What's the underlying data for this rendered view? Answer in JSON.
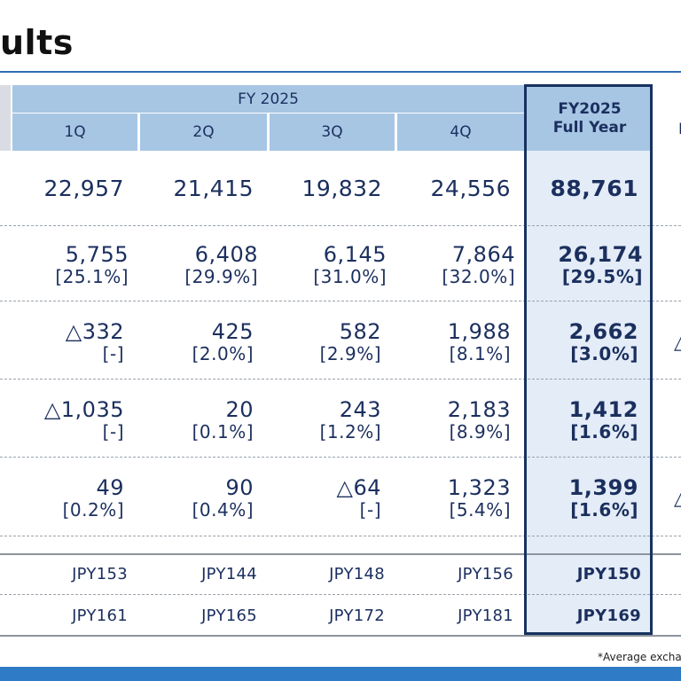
{
  "title": "ults",
  "header": {
    "period": "FY 2025",
    "quarters": [
      "1Q",
      "2Q",
      "3Q",
      "4Q"
    ],
    "full_year_line1": "FY2025",
    "full_year_line2": "Full Year",
    "cut_off": "I"
  },
  "rows": [
    {
      "q": [
        {
          "v": "22,957"
        },
        {
          "v": "21,415"
        },
        {
          "v": "19,832"
        },
        {
          "v": "24,556"
        }
      ],
      "fy": {
        "v": "88,761"
      }
    },
    {
      "q": [
        {
          "v": "5,755",
          "p": "[25.1%]"
        },
        {
          "v": "6,408",
          "p": "[29.9%]"
        },
        {
          "v": "6,145",
          "p": "[31.0%]"
        },
        {
          "v": "7,864",
          "p": "[32.0%]"
        }
      ],
      "fy": {
        "v": "26,174",
        "p": "[29.5%]"
      }
    },
    {
      "q": [
        {
          "v": "△332",
          "p": "[-]"
        },
        {
          "v": "425",
          "p": "[2.0%]"
        },
        {
          "v": "582",
          "p": "[2.9%]"
        },
        {
          "v": "1,988",
          "p": "[8.1%]"
        }
      ],
      "fy": {
        "v": "2,662",
        "p": "[3.0%]"
      }
    },
    {
      "q": [
        {
          "v": "△1,035",
          "p": "[-]"
        },
        {
          "v": "20",
          "p": "[0.1%]"
        },
        {
          "v": "243",
          "p": "[1.2%]"
        },
        {
          "v": "2,183",
          "p": "[8.9%]"
        }
      ],
      "fy": {
        "v": "1,412",
        "p": "[1.6%]"
      }
    },
    {
      "q": [
        {
          "v": "49",
          "p": "[0.2%]"
        },
        {
          "v": "90",
          "p": "[0.4%]"
        },
        {
          "v": "△64",
          "p": "[-]"
        },
        {
          "v": "1,323",
          "p": "[5.4%]"
        }
      ],
      "fy": {
        "v": "1,399",
        "p": "[1.6%]"
      }
    }
  ],
  "fx_rows": [
    {
      "q": [
        "JPY153",
        "JPY144",
        "JPY148",
        "JPY156"
      ],
      "fy": "JPY150"
    },
    {
      "q": [
        "JPY161",
        "JPY165",
        "JPY172",
        "JPY181"
      ],
      "fy": "JPY169"
    }
  ],
  "right_edge_marks": [
    "△",
    "",
    "△"
  ],
  "footnote": "*Average excha",
  "colors": {
    "header": "#a7c6e4",
    "highlight": "#e3ecf7",
    "border": "#17325f",
    "text": "#1b2f5e",
    "accent": "#2f7bc6"
  }
}
